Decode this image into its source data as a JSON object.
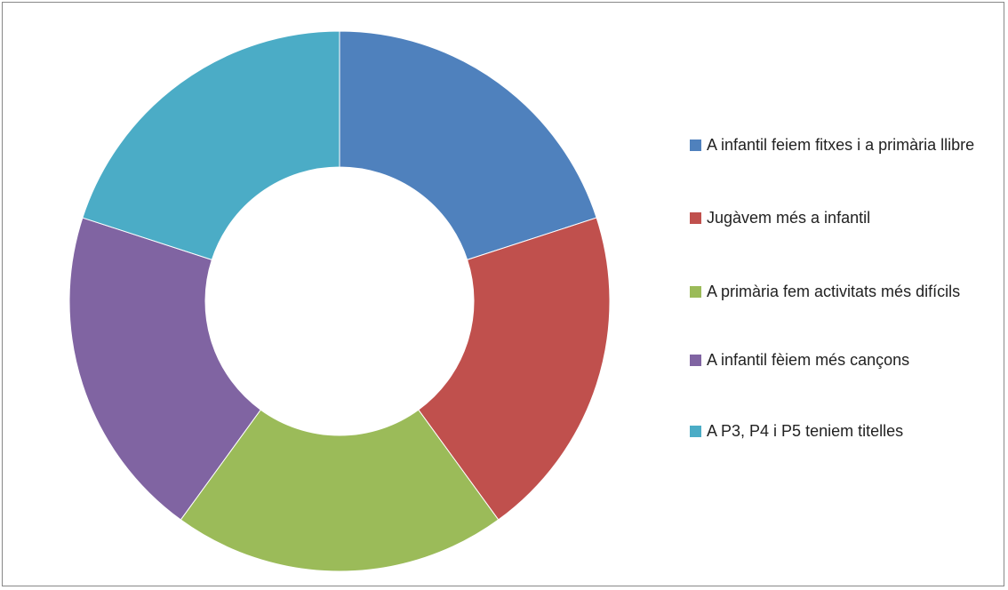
{
  "chart_data": {
    "type": "donut",
    "categories": [
      "A infantil feiem fitxes i a primària llibre",
      "Jugàvem més a infantil",
      "A primària fem activitats més difícils",
      "A infantil fèiem més cançons",
      "A P3, P4 i P5 teniem titelles"
    ],
    "values": [
      20,
      20,
      20,
      20,
      20
    ],
    "colors": [
      "#4f81bd",
      "#c0504d",
      "#9bbb59",
      "#8064a2",
      "#4bacc6"
    ],
    "legend": "right"
  }
}
